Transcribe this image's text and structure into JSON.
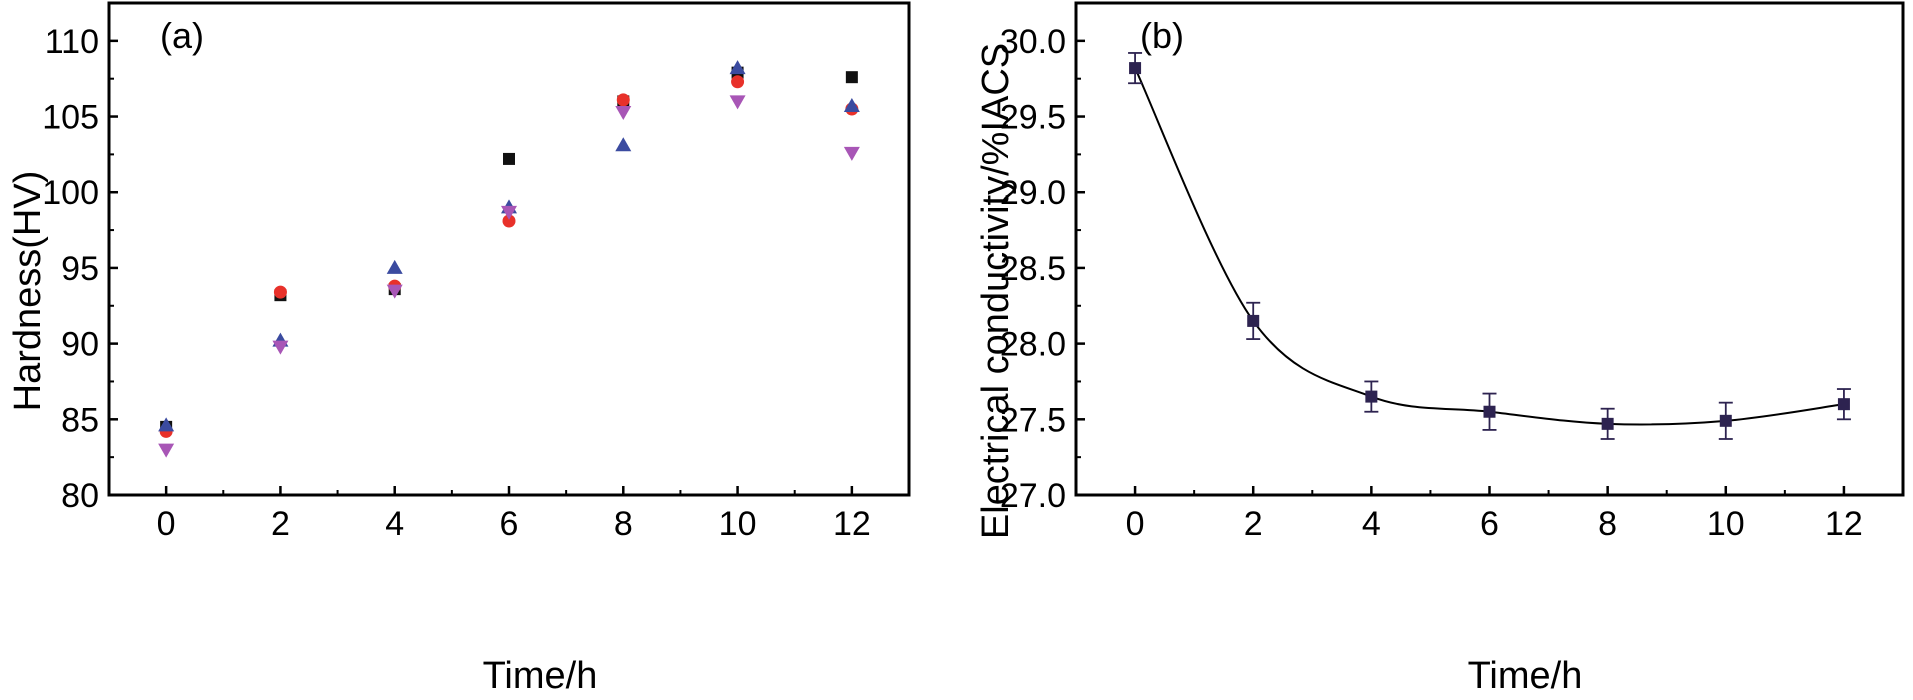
{
  "chart_data": [
    {
      "type": "scatter",
      "panel_label": "(a)",
      "xlabel": "Time/h",
      "ylabel": "Hardness(HV)",
      "xlim": [
        -1,
        13
      ],
      "ylim": [
        80,
        112.5
      ],
      "xticks": [
        0,
        2,
        4,
        6,
        8,
        10,
        12
      ],
      "yticks": [
        80,
        85,
        90,
        95,
        100,
        105,
        110
      ],
      "x": [
        0,
        2,
        4,
        6,
        8,
        10,
        12
      ],
      "series": [
        {
          "marker": "square",
          "color": "#111111",
          "values": [
            84.5,
            93.2,
            93.6,
            102.2,
            106.0,
            107.9,
            107.6
          ]
        },
        {
          "marker": "circle",
          "color": "#e8312a",
          "values": [
            84.2,
            93.4,
            93.8,
            98.1,
            106.1,
            107.3,
            105.5
          ]
        },
        {
          "marker": "triangle-up",
          "color": "#3b4ba0",
          "values": [
            84.6,
            90.2,
            95.0,
            99.0,
            103.1,
            108.2,
            105.7
          ]
        },
        {
          "marker": "triangle-down",
          "color": "#a856b6",
          "values": [
            83.0,
            89.8,
            93.5,
            98.7,
            105.3,
            106.0,
            102.6
          ]
        }
      ],
      "grid": false,
      "legend": "none"
    },
    {
      "type": "line",
      "panel_label": "(b)",
      "xlabel": "Time/h",
      "ylabel": "Electrical conductivity/%IACS",
      "xlim": [
        -1,
        13
      ],
      "ylim": [
        27.0,
        30.25
      ],
      "xticks": [
        0,
        2,
        4,
        6,
        8,
        10,
        12
      ],
      "yticks": [
        "27.0",
        "27.5",
        "28.0",
        "28.5",
        "29.0",
        "29.5",
        "30.0"
      ],
      "x": [
        0,
        2,
        4,
        6,
        8,
        10,
        12
      ],
      "series": [
        {
          "marker": "square",
          "color": "#2d2350",
          "values": [
            29.82,
            28.15,
            27.65,
            27.55,
            27.47,
            27.49,
            27.6
          ],
          "error": [
            0.1,
            0.12,
            0.1,
            0.12,
            0.1,
            0.12,
            0.1
          ]
        }
      ],
      "fit_curve": true,
      "grid": false,
      "legend": "none"
    }
  ]
}
